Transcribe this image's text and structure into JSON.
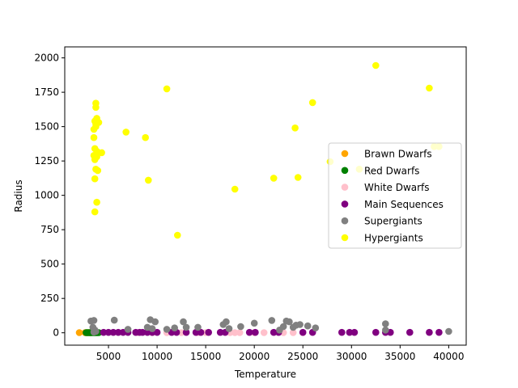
{
  "chart_data": {
    "type": "scatter",
    "title": "",
    "xlabel": "Temperature",
    "ylabel": "Radius",
    "xlim": [
      500,
      41800
    ],
    "ylim": [
      -90,
      2080
    ],
    "xticks": [
      5000,
      10000,
      15000,
      20000,
      25000,
      30000,
      35000,
      40000
    ],
    "yticks": [
      0,
      250,
      500,
      750,
      1000,
      1250,
      1500,
      1750,
      2000
    ],
    "grid": false,
    "legend_position": "center-right",
    "series": [
      {
        "name": "Brawn Dwarfs",
        "color": "#ffa500",
        "points": [
          [
            2000,
            1
          ],
          [
            2600,
            1
          ],
          [
            2700,
            1
          ],
          [
            2800,
            1
          ],
          [
            2900,
            1
          ],
          [
            3000,
            1
          ],
          [
            3100,
            1
          ],
          [
            3200,
            1
          ]
        ]
      },
      {
        "name": "Red Dwarfs",
        "color": "#008000",
        "points": [
          [
            2700,
            1
          ],
          [
            2800,
            1
          ],
          [
            2900,
            1
          ],
          [
            3000,
            1
          ],
          [
            3100,
            1
          ],
          [
            3150,
            1
          ],
          [
            3200,
            1
          ],
          [
            3300,
            1
          ],
          [
            3400,
            1
          ],
          [
            3500,
            1
          ],
          [
            3600,
            1
          ],
          [
            3700,
            1
          ],
          [
            3800,
            1
          ],
          [
            3900,
            1
          ],
          [
            4000,
            1
          ]
        ]
      },
      {
        "name": "White Dwarfs",
        "color": "#ffc0cb",
        "points": [
          [
            8000,
            1
          ],
          [
            9500,
            1
          ],
          [
            11000,
            1
          ],
          [
            12500,
            1
          ],
          [
            14200,
            1
          ],
          [
            15000,
            1
          ],
          [
            17500,
            1
          ],
          [
            18000,
            1
          ],
          [
            18500,
            1
          ],
          [
            20000,
            1
          ],
          [
            21000,
            1
          ],
          [
            23000,
            1
          ],
          [
            24000,
            1
          ],
          [
            25000,
            1
          ]
        ]
      },
      {
        "name": "Main Sequences",
        "color": "#800080",
        "points": [
          [
            4500,
            3
          ],
          [
            5000,
            3
          ],
          [
            5500,
            3
          ],
          [
            6000,
            3
          ],
          [
            6500,
            3
          ],
          [
            7000,
            3
          ],
          [
            7800,
            3
          ],
          [
            8200,
            3
          ],
          [
            8500,
            3
          ],
          [
            9000,
            3
          ],
          [
            9500,
            3
          ],
          [
            10000,
            3
          ],
          [
            11500,
            3
          ],
          [
            12000,
            3
          ],
          [
            13000,
            3
          ],
          [
            14000,
            3
          ],
          [
            14500,
            3
          ],
          [
            15300,
            3
          ],
          [
            16500,
            3
          ],
          [
            17000,
            3
          ],
          [
            19500,
            3
          ],
          [
            20100,
            3
          ],
          [
            22000,
            3
          ],
          [
            22500,
            3
          ],
          [
            25000,
            3
          ],
          [
            26000,
            3
          ],
          [
            29000,
            3
          ],
          [
            29800,
            3
          ],
          [
            30300,
            3
          ],
          [
            32500,
            3
          ],
          [
            33500,
            3
          ],
          [
            34000,
            3
          ],
          [
            36000,
            3
          ],
          [
            38000,
            3
          ],
          [
            39000,
            3
          ]
        ]
      },
      {
        "name": "Supergiants",
        "color": "#808080",
        "points": [
          [
            3200,
            85
          ],
          [
            3500,
            90
          ],
          [
            3400,
            40
          ],
          [
            3600,
            20
          ],
          [
            3700,
            10
          ],
          [
            3500,
            5
          ],
          [
            5600,
            92
          ],
          [
            7000,
            25
          ],
          [
            9000,
            40
          ],
          [
            9500,
            30
          ],
          [
            9300,
            95
          ],
          [
            9800,
            80
          ],
          [
            11000,
            25
          ],
          [
            11800,
            35
          ],
          [
            12700,
            80
          ],
          [
            13000,
            40
          ],
          [
            14200,
            40
          ],
          [
            16800,
            60
          ],
          [
            17100,
            80
          ],
          [
            17400,
            30
          ],
          [
            18600,
            45
          ],
          [
            20000,
            70
          ],
          [
            21800,
            90
          ],
          [
            22600,
            20
          ],
          [
            23000,
            45
          ],
          [
            23300,
            85
          ],
          [
            23600,
            80
          ],
          [
            24000,
            40
          ],
          [
            24300,
            55
          ],
          [
            24700,
            60
          ],
          [
            25500,
            50
          ],
          [
            26300,
            35
          ],
          [
            33500,
            20
          ],
          [
            33500,
            65
          ],
          [
            40000,
            10
          ]
        ]
      },
      {
        "name": "Hypergiants",
        "color": "#ffff00",
        "points": [
          [
            3700,
            1670
          ],
          [
            3700,
            1640
          ],
          [
            3800,
            1560
          ],
          [
            3600,
            1540
          ],
          [
            3700,
            1520
          ],
          [
            4000,
            1530
          ],
          [
            3500,
            1480
          ],
          [
            3700,
            1500
          ],
          [
            3500,
            1420
          ],
          [
            3600,
            1340
          ],
          [
            3800,
            1320
          ],
          [
            4300,
            1310
          ],
          [
            3500,
            1290
          ],
          [
            3800,
            1280
          ],
          [
            3600,
            1260
          ],
          [
            3700,
            1190
          ],
          [
            3900,
            1180
          ],
          [
            3600,
            1120
          ],
          [
            3800,
            950
          ],
          [
            3600,
            880
          ],
          [
            6800,
            1460
          ],
          [
            8800,
            1420
          ],
          [
            9100,
            1110
          ],
          [
            11000,
            1775
          ],
          [
            12100,
            710
          ],
          [
            18000,
            1045
          ],
          [
            22000,
            1125
          ],
          [
            24200,
            1490
          ],
          [
            24500,
            1130
          ],
          [
            26000,
            1675
          ],
          [
            27800,
            1245
          ],
          [
            30800,
            1190
          ],
          [
            32500,
            1945
          ],
          [
            38000,
            1780
          ],
          [
            38500,
            1355
          ],
          [
            39000,
            1355
          ]
        ]
      }
    ]
  }
}
